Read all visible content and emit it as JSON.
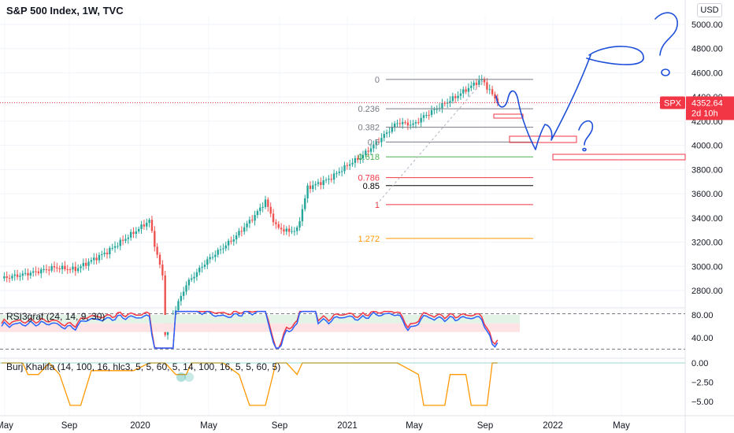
{
  "header": {
    "title": "S&P 500 Index, 1W, TVC",
    "currency": "USD"
  },
  "chart_data": {
    "type": "candlestick",
    "title": "S&P 500 Index, 1W, TVC",
    "x_tick_labels": [
      "May",
      "Sep",
      "2020",
      "May",
      "Sep",
      "2021",
      "May",
      "Sep",
      "2022",
      "May"
    ],
    "y_tick_labels": [
      "5000.00",
      "4800.00",
      "4600.00",
      "4400.00",
      "4200.00",
      "4000.00",
      "3800.00",
      "3600.00",
      "3400.00",
      "3200.00",
      "3000.00",
      "2800.00"
    ],
    "ylim": [
      2700,
      5150
    ],
    "last_price": {
      "symbol": "SPX",
      "value": "4352.64",
      "countdown": "2d 10h",
      "price": 4352.64
    },
    "fib_levels": [
      {
        "label": "0",
        "price": 4545,
        "color": "#787b86"
      },
      {
        "label": "0.236",
        "price": 4303,
        "color": "#787b86"
      },
      {
        "label": "0.382",
        "price": 4150,
        "color": "#787b86"
      },
      {
        "label": "0.5",
        "price": 4028,
        "color": "#787b86"
      },
      {
        "label": "0.618",
        "price": 3905,
        "color": "#4caf50"
      },
      {
        "label": "0.786",
        "price": 3733,
        "color": "#f23645"
      },
      {
        "label": "0.85",
        "price": 3667,
        "color": "#000000"
      },
      {
        "label": "1",
        "price": 3510,
        "color": "#f23645"
      },
      {
        "label": "1.272",
        "price": 3230,
        "color": "#ff9800"
      }
    ],
    "indicators": [
      {
        "name": "RSI3graf (24, 14, 9, 30)",
        "y_tick_labels": [
          "80.00",
          "40.00"
        ],
        "ylim": [
          15,
          95
        ]
      },
      {
        "name": "Burj Khalifa (14, 100, 16, hlc3, 5, 5, 60, 5, 14, 100, 16, 5, 5, 60, 5)",
        "y_tick_labels": [
          "0.00",
          "−2.50",
          "−5.00"
        ],
        "ylim": [
          -6.7,
          0.6
        ]
      }
    ]
  },
  "colors": {
    "up": "#26a69a",
    "down": "#ef5350",
    "price_line": "#f23645",
    "annotation": "#1e4fd8",
    "rsi_fast": "#f23645",
    "rsi_slow": "#2962ff",
    "burj": "#ff9800"
  }
}
